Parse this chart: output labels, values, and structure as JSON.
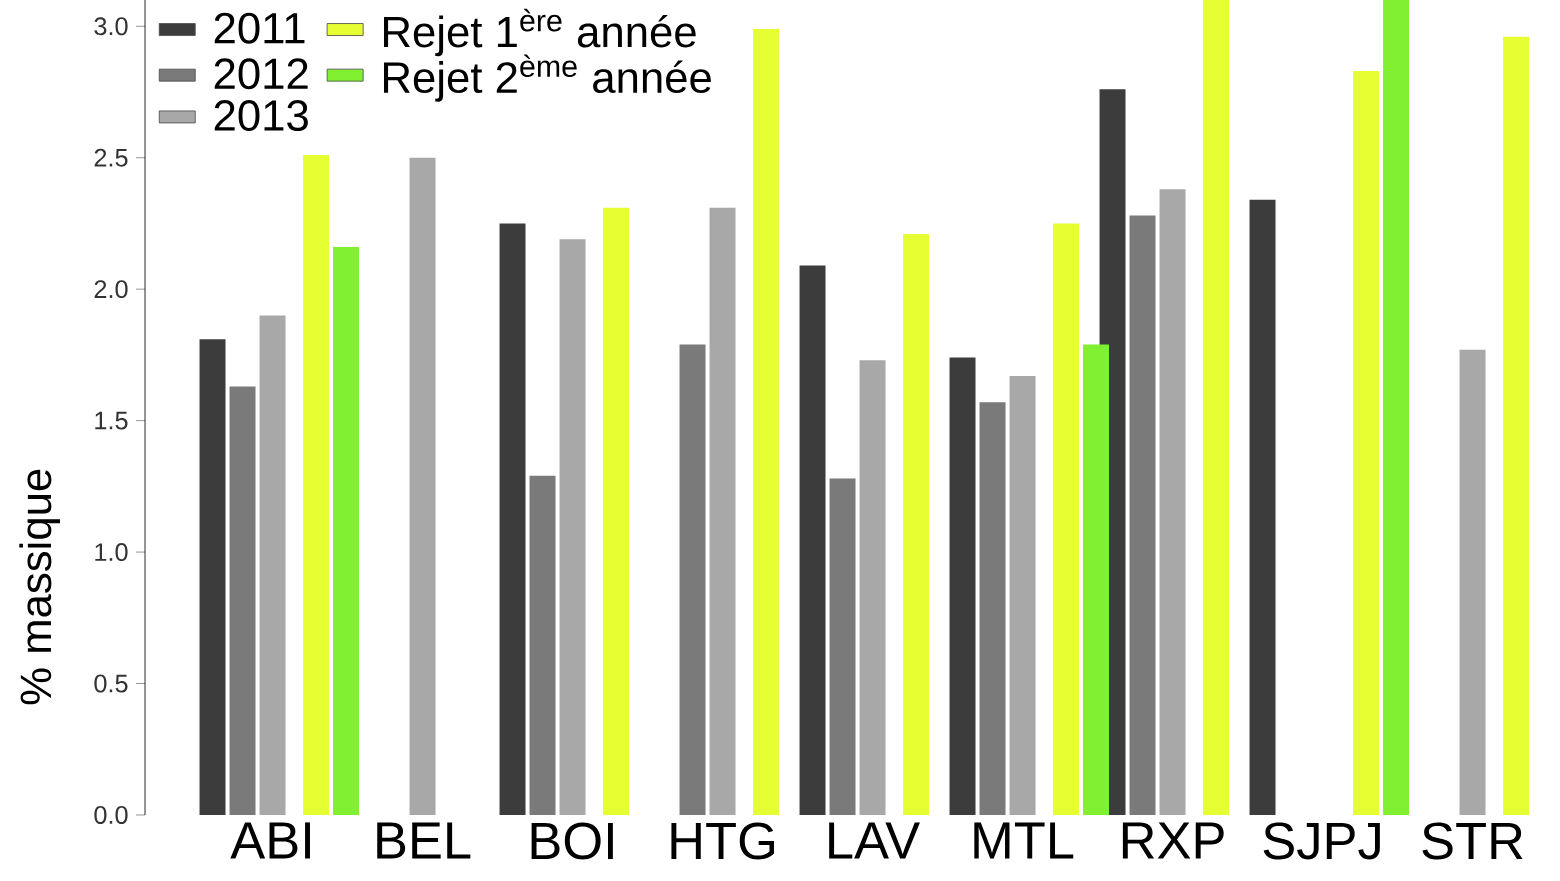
{
  "chart_data": {
    "type": "bar",
    "ylabel": "% massique",
    "categories": [
      "ABI",
      "BEL",
      "BOI",
      "HTG",
      "LAV",
      "MTL",
      "RXP",
      "SJPJ",
      "STR"
    ],
    "series": [
      {
        "name": "2011",
        "color": "#3c3c3c",
        "values": [
          1.81,
          null,
          2.25,
          null,
          2.09,
          1.74,
          2.76,
          2.34,
          null
        ]
      },
      {
        "name": "2012",
        "color": "#7a7a7a",
        "values": [
          1.63,
          null,
          1.29,
          1.79,
          1.28,
          1.57,
          2.28,
          null,
          null
        ]
      },
      {
        "name": "2013",
        "color": "#a8a8a8",
        "values": [
          1.9,
          2.5,
          2.19,
          2.31,
          1.73,
          1.67,
          2.38,
          null,
          1.77
        ]
      },
      {
        "name": "Rejet 1$^{ère}$ année",
        "color": "#e6ff33",
        "values": [
          2.51,
          null,
          2.31,
          2.99,
          2.21,
          2.25,
          3.1,
          2.83,
          2.96
        ]
      },
      {
        "name": "Rejet 2$^{ème}$ année",
        "color": "#80f030",
        "values": [
          2.16,
          null,
          null,
          null,
          null,
          1.79,
          null,
          3.1,
          null
        ]
      }
    ],
    "ylim": [
      0,
      3.1
    ],
    "yticks": [
      {
        "value": 0,
        "label": "0.0"
      },
      {
        "value": 0.5,
        "label": "0.5"
      },
      {
        "value": 1,
        "label": "1.0"
      },
      {
        "value": 1.5,
        "label": "1.5"
      },
      {
        "value": 2,
        "label": "2.0"
      },
      {
        "value": 2.5,
        "label": "2.5"
      },
      {
        "value": 3,
        "label": "3.0"
      }
    ],
    "legend": "top left",
    "grid": false
  }
}
